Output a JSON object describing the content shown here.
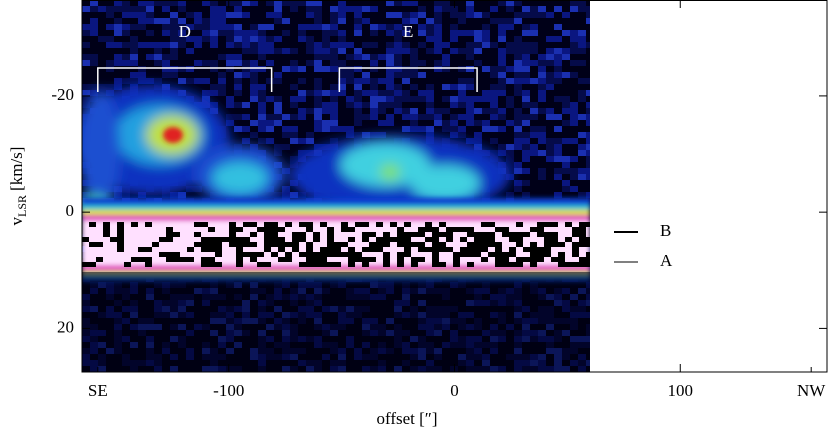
{
  "chart_data": {
    "type": "position-velocity",
    "x_label": "offset [″]",
    "y_label": {
      "main": "v",
      "sub": "LSR",
      "unit": "[km/s]"
    },
    "xlim": [
      -165,
      165
    ],
    "xticks": [
      {
        "value": -158,
        "label": "SE"
      },
      -100,
      0,
      100,
      {
        "value": 158,
        "label": "NW"
      }
    ],
    "ylim": [
      -36.5,
      27.5
    ],
    "yticks": [
      -20,
      0,
      20
    ],
    "annotations": [
      "D",
      "E"
    ],
    "legend": [
      "B",
      "A"
    ]
  }
}
